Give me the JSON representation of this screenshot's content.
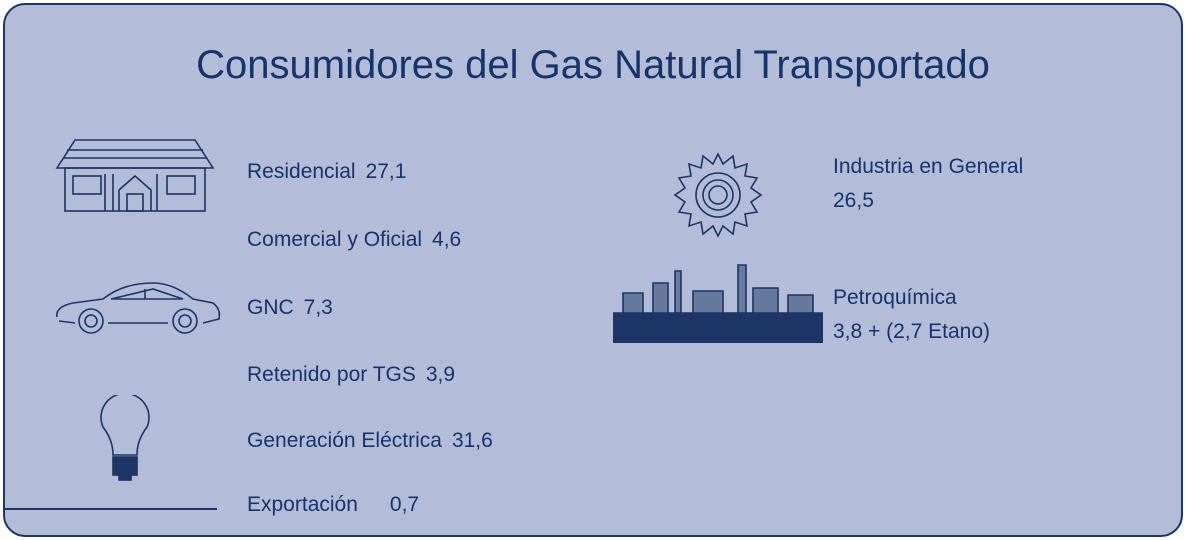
{
  "title": "Consumidores del Gas Natural Transportado",
  "left_items": [
    {
      "label": "Residencial",
      "value": "27,1"
    },
    {
      "label": "Comercial y Oficial",
      "value": "4,6"
    },
    {
      "label": "GNC",
      "value": "7,3"
    },
    {
      "label": "Retenido por TGS",
      "value": "3,9"
    },
    {
      "label": "Generación Eléctrica",
      "value": "31,6"
    },
    {
      "label": "Exportación",
      "value": "0,7"
    }
  ],
  "right_items": [
    {
      "label": "Industria en General",
      "value": "26,5"
    },
    {
      "label": "Petroquímica",
      "value": "3,8 + (2,7 Etano)"
    }
  ]
}
